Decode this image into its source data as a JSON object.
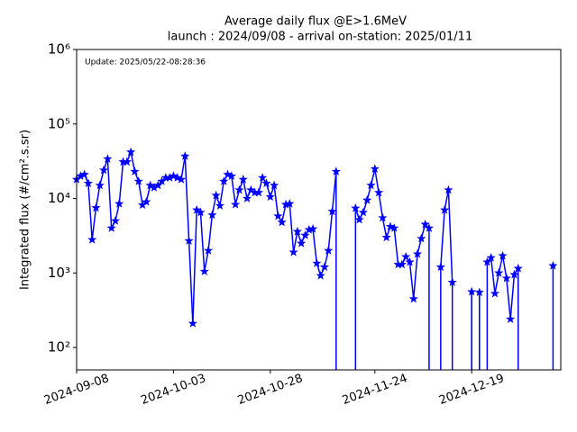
{
  "chart_data": {
    "type": "line",
    "title": "Average daily flux @E>1.6MeV",
    "subtitle": "launch : 2024/09/08 - arrival on-station: 2025/01/11",
    "annotation": "Update: 2025/05/22-08:28:36",
    "ylabel": "Integrated flux (#/cm².s.sr)",
    "log_y": true,
    "x": [
      "2024-09-08",
      "2024-09-09",
      "2024-09-10",
      "2024-09-11",
      "2024-09-12",
      "2024-09-13",
      "2024-09-14",
      "2024-09-15",
      "2024-09-16",
      "2024-09-17",
      "2024-09-18",
      "2024-09-19",
      "2024-09-20",
      "2024-09-21",
      "2024-09-22",
      "2024-09-23",
      "2024-09-24",
      "2024-09-25",
      "2024-09-26",
      "2024-09-27",
      "2024-09-28",
      "2024-09-29",
      "2024-09-30",
      "2024-10-01",
      "2024-10-02",
      "2024-10-03",
      "2024-10-04",
      "2024-10-05",
      "2024-10-06",
      "2024-10-07",
      "2024-10-08",
      "2024-10-09",
      "2024-10-10",
      "2024-10-11",
      "2024-10-12",
      "2024-10-13",
      "2024-10-14",
      "2024-10-15",
      "2024-10-16",
      "2024-10-17",
      "2024-10-18",
      "2024-10-19",
      "2024-10-20",
      "2024-10-21",
      "2024-10-22",
      "2024-10-23",
      "2024-10-24",
      "2024-10-25",
      "2024-10-26",
      "2024-10-27",
      "2024-10-28",
      "2024-10-29",
      "2024-10-30",
      "2024-10-31",
      "2024-11-01",
      "2024-11-02",
      "2024-11-03",
      "2024-11-04",
      "2024-11-05",
      "2024-11-06",
      "2024-11-07",
      "2024-11-08",
      "2024-11-09",
      "2024-11-10",
      "2024-11-11",
      "2024-11-12",
      "2024-11-13",
      "2024-11-14",
      "2024-11-15",
      "2024-11-16",
      "2024-11-17",
      "2024-11-18",
      "2024-11-19",
      "2024-11-20",
      "2024-11-21",
      "2024-11-22",
      "2024-11-23",
      "2024-11-24",
      "2024-11-25",
      "2024-11-26",
      "2024-11-27",
      "2024-11-28",
      "2024-11-29",
      "2024-11-30",
      "2024-12-01",
      "2024-12-02",
      "2024-12-03",
      "2024-12-04",
      "2024-12-05",
      "2024-12-06",
      "2024-12-07",
      "2024-12-08",
      "2024-12-09",
      "2024-12-10",
      "2024-12-11",
      "2024-12-12",
      "2024-12-13",
      "2024-12-14",
      "2024-12-15",
      "2024-12-16",
      "2024-12-17",
      "2024-12-18",
      "2024-12-19",
      "2024-12-20",
      "2024-12-21",
      "2024-12-22",
      "2024-12-23",
      "2024-12-24",
      "2024-12-25",
      "2024-12-26",
      "2024-12-27",
      "2024-12-28",
      "2024-12-29",
      "2024-12-30",
      "2024-12-31",
      "2025-01-01",
      "2025-01-02",
      "2025-01-03",
      "2025-01-04",
      "2025-01-05",
      "2025-01-06",
      "2025-01-07",
      "2025-01-08",
      "2025-01-09"
    ],
    "series": [
      {
        "name": "flux",
        "color": "#0000ff",
        "values": [
          18000,
          20000,
          21000,
          16000,
          2800,
          7500,
          15000,
          24000,
          34000,
          4000,
          5000,
          8500,
          31000,
          31000,
          42000,
          23000,
          17000,
          8200,
          9000,
          15000,
          14000,
          15000,
          17000,
          19000,
          19000,
          20000,
          19000,
          18000,
          37000,
          2700,
          210,
          7000,
          6500,
          1050,
          2000,
          6000,
          11000,
          8000,
          17000,
          21000,
          20000,
          8300,
          13000,
          18000,
          10000,
          13000,
          12000,
          12000,
          19000,
          16000,
          10500,
          15000,
          5800,
          4800,
          8300,
          8500,
          1900,
          3600,
          2500,
          3200,
          3800,
          3900,
          1350,
          920,
          1200,
          2000,
          6700,
          23000,
          0,
          0,
          0,
          0,
          7400,
          5200,
          6500,
          9500,
          15000,
          25000,
          12000,
          5500,
          3000,
          4200,
          4000,
          1300,
          1300,
          1650,
          1400,
          450,
          1800,
          2900,
          4500,
          4000,
          0,
          0,
          1200,
          7000,
          13000,
          750,
          0,
          0,
          0,
          0,
          560,
          0,
          550,
          0,
          1400,
          1600,
          530,
          1000,
          1700,
          850,
          240,
          950,
          1150,
          0,
          0,
          0,
          0,
          0,
          0,
          0,
          0,
          1250
        ]
      }
    ],
    "xlim": [
      "2024-09-08",
      "2025-01-11"
    ],
    "xticks": [
      "2024-09-08",
      "2024-10-03",
      "2024-10-28",
      "2024-11-24",
      "2024-12-19"
    ],
    "ylim": [
      50,
      1000000
    ],
    "yticks": [
      {
        "value": 100,
        "label": "10²"
      },
      {
        "value": 1000,
        "label": "10³"
      },
      {
        "value": 10000,
        "label": "10⁴"
      },
      {
        "value": 100000,
        "label": "10⁵"
      },
      {
        "value": 1000000,
        "label": "10⁶"
      }
    ]
  }
}
